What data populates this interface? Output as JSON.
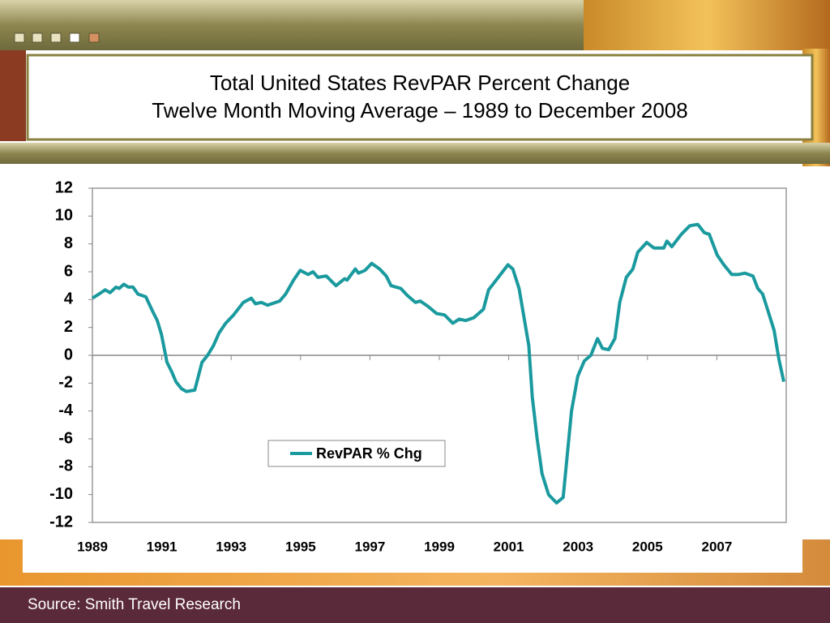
{
  "chart_data": {
    "type": "line",
    "title": "Total United States RevPAR Percent Change",
    "subtitle": "Twelve Month Moving Average – 1989 to December 2008",
    "x": [
      1989.0,
      1989.19,
      1989.37,
      1989.51,
      1989.68,
      1989.77,
      1989.91,
      1990.03,
      1990.17,
      1990.31,
      1990.54,
      1990.73,
      1990.87,
      1990.99,
      1991.15,
      1991.29,
      1991.41,
      1991.57,
      1991.71,
      1991.95,
      1992.16,
      1992.32,
      1992.49,
      1992.65,
      1992.84,
      1993.07,
      1993.35,
      1993.58,
      1993.7,
      1993.87,
      1994.05,
      1994.4,
      1994.57,
      1994.8,
      1994.99,
      1995.22,
      1995.36,
      1995.5,
      1995.74,
      1996.02,
      1996.27,
      1996.34,
      1996.58,
      1996.67,
      1996.86,
      1997.05,
      1997.28,
      1997.47,
      1997.61,
      1997.89,
      1998.08,
      1998.31,
      1998.45,
      1998.68,
      1998.92,
      1999.15,
      1999.39,
      1999.57,
      1999.76,
      1999.99,
      2000.27,
      2000.42,
      2000.7,
      2000.98,
      2001.12,
      2001.3,
      2001.58,
      2001.68,
      2001.82,
      2001.96,
      2002.15,
      2002.38,
      2002.57,
      2002.81,
      2002.99,
      2003.18,
      2003.37,
      2003.56,
      2003.7,
      2003.88,
      2004.06,
      2004.2,
      2004.39,
      2004.58,
      2004.72,
      2004.98,
      2005.19,
      2005.47,
      2005.56,
      2005.7,
      2005.98,
      2006.22,
      2006.45,
      2006.64,
      2006.78,
      2007.01,
      2007.2,
      2007.43,
      2007.62,
      2007.81,
      2008.04,
      2008.18,
      2008.32,
      2008.46,
      2008.65,
      2008.79,
      2008.93
    ],
    "series": [
      {
        "name": "RevPAR % Chg",
        "color": "#1a9a9e",
        "values": [
          4.1,
          4.4,
          4.7,
          4.5,
          4.9,
          4.8,
          5.1,
          4.9,
          4.9,
          4.4,
          4.2,
          3.2,
          2.5,
          1.5,
          -0.5,
          -1.2,
          -1.9,
          -2.4,
          -2.6,
          -2.5,
          -0.5,
          0,
          0.7,
          1.6,
          2.3,
          2.9,
          3.8,
          4.1,
          3.7,
          3.8,
          3.6,
          3.9,
          4.4,
          5.4,
          6.1,
          5.8,
          6.0,
          5.6,
          5.7,
          5.0,
          5.5,
          5.4,
          6.2,
          5.9,
          6.1,
          6.6,
          6.2,
          5.7,
          5.0,
          4.8,
          4.3,
          3.8,
          3.9,
          3.5,
          3.0,
          2.9,
          2.3,
          2.6,
          2.5,
          2.7,
          3.3,
          4.7,
          5.6,
          6.5,
          6.2,
          4.8,
          0.7,
          -3,
          -6,
          -8.5,
          -10,
          -10.6,
          -10.2,
          -4,
          -1.5,
          -0.4,
          0,
          1.2,
          0.5,
          0.4,
          1.2,
          3.8,
          5.6,
          6.2,
          7.4,
          8.1,
          7.7,
          7.7,
          8.2,
          7.8,
          8.7,
          9.3,
          9.4,
          8.8,
          8.7,
          7.2,
          6.5,
          5.8,
          5.8,
          5.9,
          5.7,
          4.8,
          4.4,
          3.3,
          1.8,
          -0.3,
          -1.9
        ]
      }
    ],
    "xlim": [
      1989,
      2009
    ],
    "xticks": [
      1989,
      1991,
      1993,
      1995,
      1997,
      1999,
      2001,
      2003,
      2005,
      2007
    ],
    "ylim": [
      -12,
      12
    ],
    "yticks": [
      12,
      10,
      8,
      6,
      4,
      2,
      0,
      -2,
      -4,
      -6,
      -8,
      -10,
      -12
    ],
    "grid": false,
    "legend": "center"
  },
  "footer": {
    "source": "Source: Smith Travel Research"
  }
}
